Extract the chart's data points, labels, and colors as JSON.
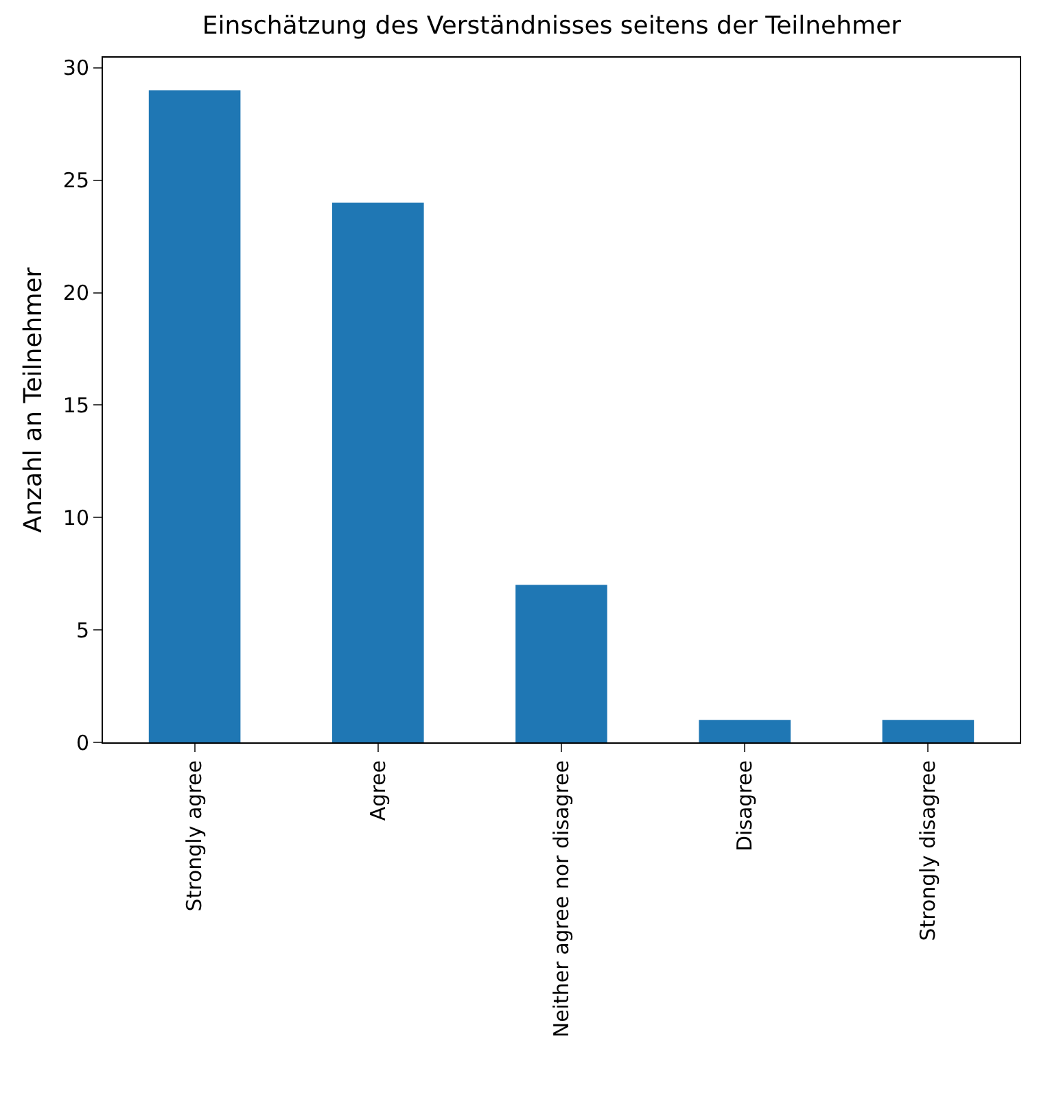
{
  "chart_data": {
    "type": "bar",
    "title": "Einschätzung des Verständnisses seitens der Teilnehmer",
    "ylabel": "Anzahl an Teilnehmer",
    "categories": [
      "Strongly agree",
      "Agree",
      "Neither agree nor disagree",
      "Disagree",
      "Strongly disagree"
    ],
    "values": [
      29,
      24,
      7,
      1,
      1
    ],
    "color": "#1f77b4",
    "ylim": [
      0,
      30.45
    ],
    "yticks": [
      0,
      5,
      10,
      15,
      20,
      25,
      30
    ],
    "grid": false,
    "legend": false
  }
}
